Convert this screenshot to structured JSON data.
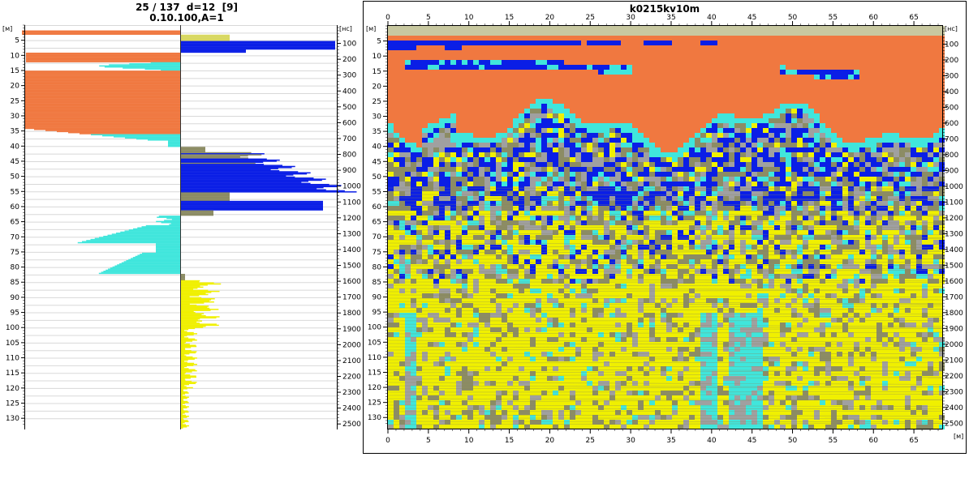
{
  "left_panel": {
    "title_line1": "25 / 137  d=12  [9]",
    "title_line2": "0.10.100,A=1",
    "depth_unit": "[м]",
    "time_unit": "[нс]",
    "depth_ticks": [
      5,
      10,
      15,
      20,
      25,
      30,
      35,
      40,
      45,
      50,
      55,
      60,
      65,
      70,
      75,
      80,
      85,
      90,
      95,
      100,
      105,
      110,
      115,
      120,
      125,
      130
    ],
    "time_ticks": [
      100,
      200,
      300,
      400,
      500,
      600,
      700,
      800,
      900,
      1000,
      1100,
      1200,
      1300,
      1400,
      1500,
      1600,
      1700,
      1800,
      1900,
      2000,
      2100,
      2200,
      2300,
      2400,
      2500
    ]
  },
  "profile": {
    "title": "k0215kv10m",
    "depth_unit": "[м]",
    "time_unit": "[нс]",
    "x_unit": "[м]",
    "x_ticks": [
      0,
      5,
      10,
      15,
      20,
      25,
      30,
      35,
      40,
      45,
      50,
      55,
      60,
      65
    ],
    "depth_ticks": [
      5,
      10,
      15,
      20,
      25,
      30,
      35,
      40,
      45,
      50,
      55,
      60,
      65,
      70,
      75,
      80,
      85,
      90,
      95,
      100,
      105,
      110,
      115,
      120,
      125,
      130
    ],
    "time_ticks": [
      100,
      200,
      300,
      400,
      500,
      600,
      700,
      800,
      900,
      1000,
      1100,
      1200,
      1300,
      1400,
      1500,
      1600,
      1700,
      1800,
      1900,
      2000,
      2100,
      2200,
      2300,
      2400,
      2500
    ]
  },
  "colors": {
    "orange": "#f07840",
    "blue": "#0a1ee6",
    "cyan": "#40e6dc",
    "yellow": "#f0f000",
    "olive": "#8c8c64",
    "grey": "#a0a0a0"
  }
}
